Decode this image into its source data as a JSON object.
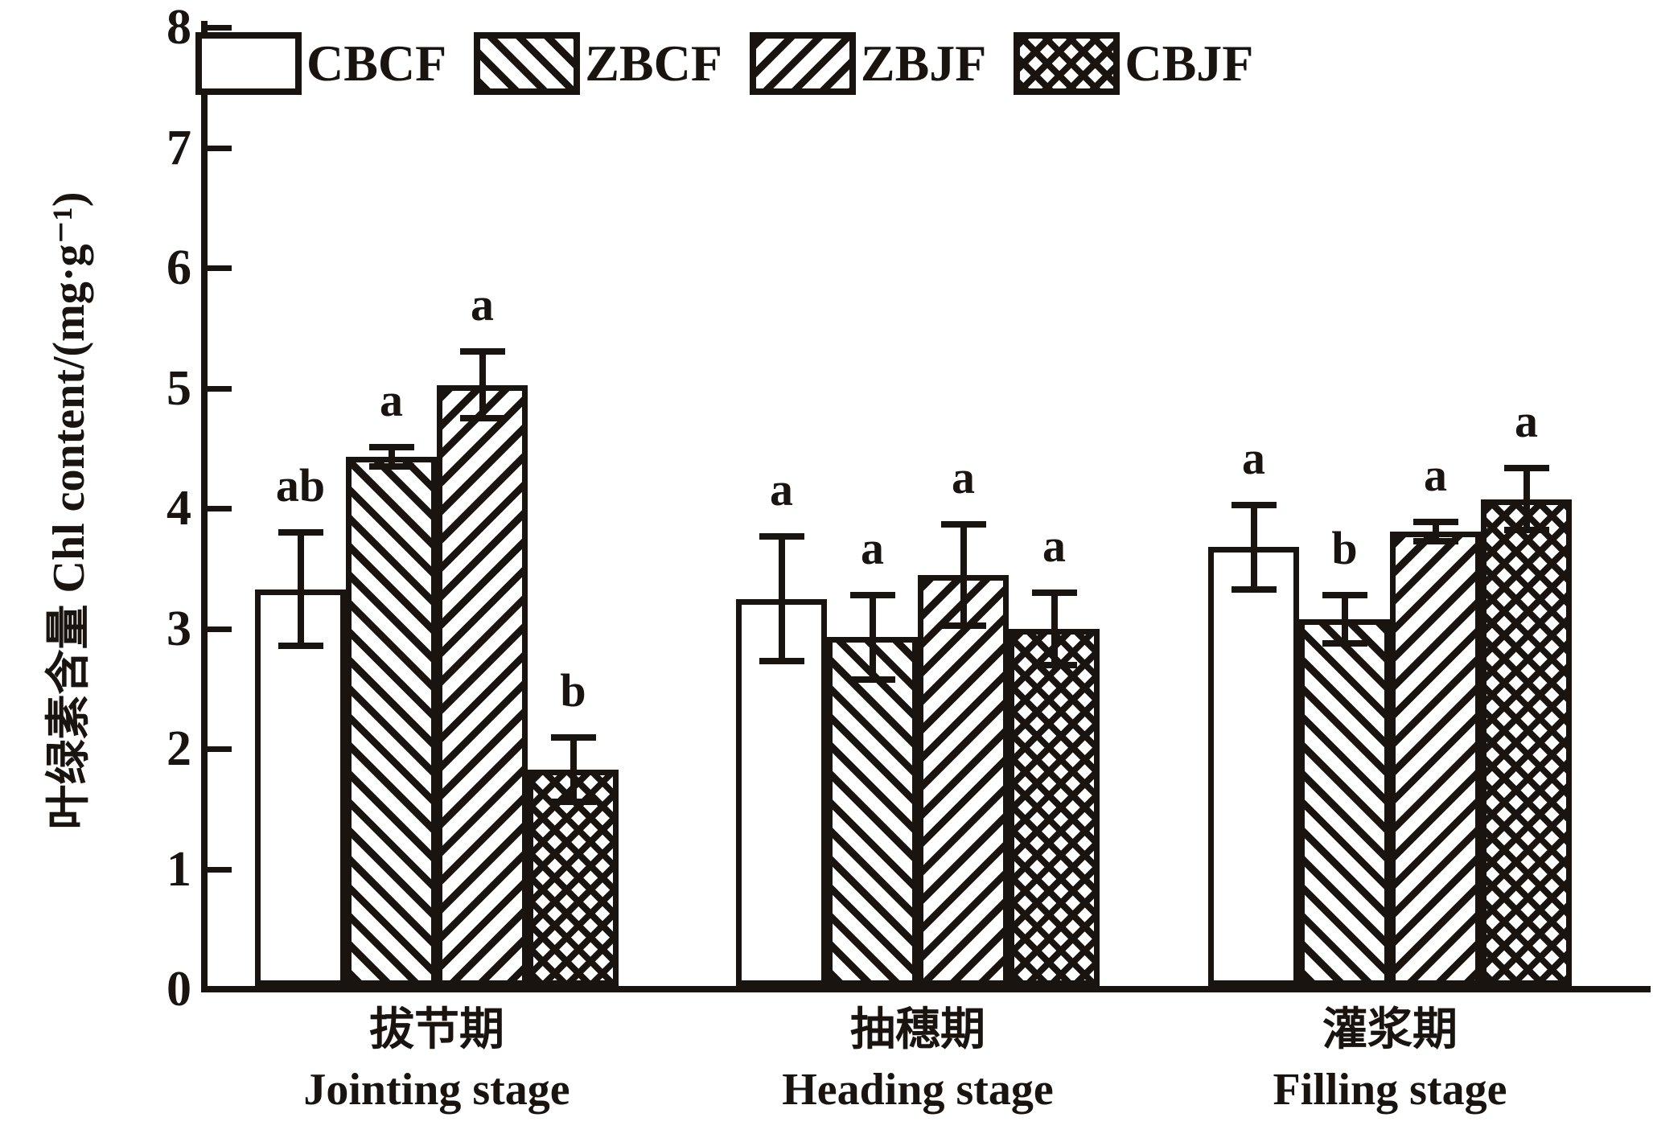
{
  "figure": {
    "background_color": "#ffffff",
    "ink_color": "#1a1410"
  },
  "chart_data": {
    "type": "bar",
    "title": "",
    "xlabel": "",
    "ylabel": "叶绿素含量 Chl content/(mg·g⁻¹)",
    "ylim": [
      0,
      8
    ],
    "yticks": [
      0,
      1,
      2,
      3,
      4,
      5,
      6,
      7,
      8
    ],
    "grid": false,
    "legend_position": "top-left horizontal inside plot",
    "error_bars": true,
    "categories": [
      {
        "zh": "拔节期",
        "en": "Jointing stage"
      },
      {
        "zh": "抽穗期",
        "en": "Heading stage"
      },
      {
        "zh": "灌浆期",
        "en": "Filling stage"
      }
    ],
    "series": [
      {
        "name": "CBCF",
        "pattern": "plain",
        "values": [
          3.3,
          3.22,
          3.65
        ],
        "errors": [
          0.47,
          0.52,
          0.35
        ],
        "sig_letters": [
          "ab",
          "a",
          "a"
        ]
      },
      {
        "name": "ZBCF",
        "pattern": "hatch-forward",
        "values": [
          4.4,
          2.9,
          3.05
        ],
        "errors": [
          0.08,
          0.35,
          0.2
        ],
        "sig_letters": [
          "a",
          "a",
          "b"
        ]
      },
      {
        "name": "ZBJF",
        "pattern": "hatch-backward",
        "values": [
          5.0,
          3.42,
          3.78
        ],
        "errors": [
          0.28,
          0.42,
          0.08
        ],
        "sig_letters": [
          "a",
          "a",
          "a"
        ]
      },
      {
        "name": "CBJF",
        "pattern": "crosshatch",
        "values": [
          1.8,
          2.97,
          4.05
        ],
        "errors": [
          0.27,
          0.3,
          0.26
        ],
        "sig_letters": [
          "b",
          "a",
          "a"
        ]
      }
    ]
  }
}
